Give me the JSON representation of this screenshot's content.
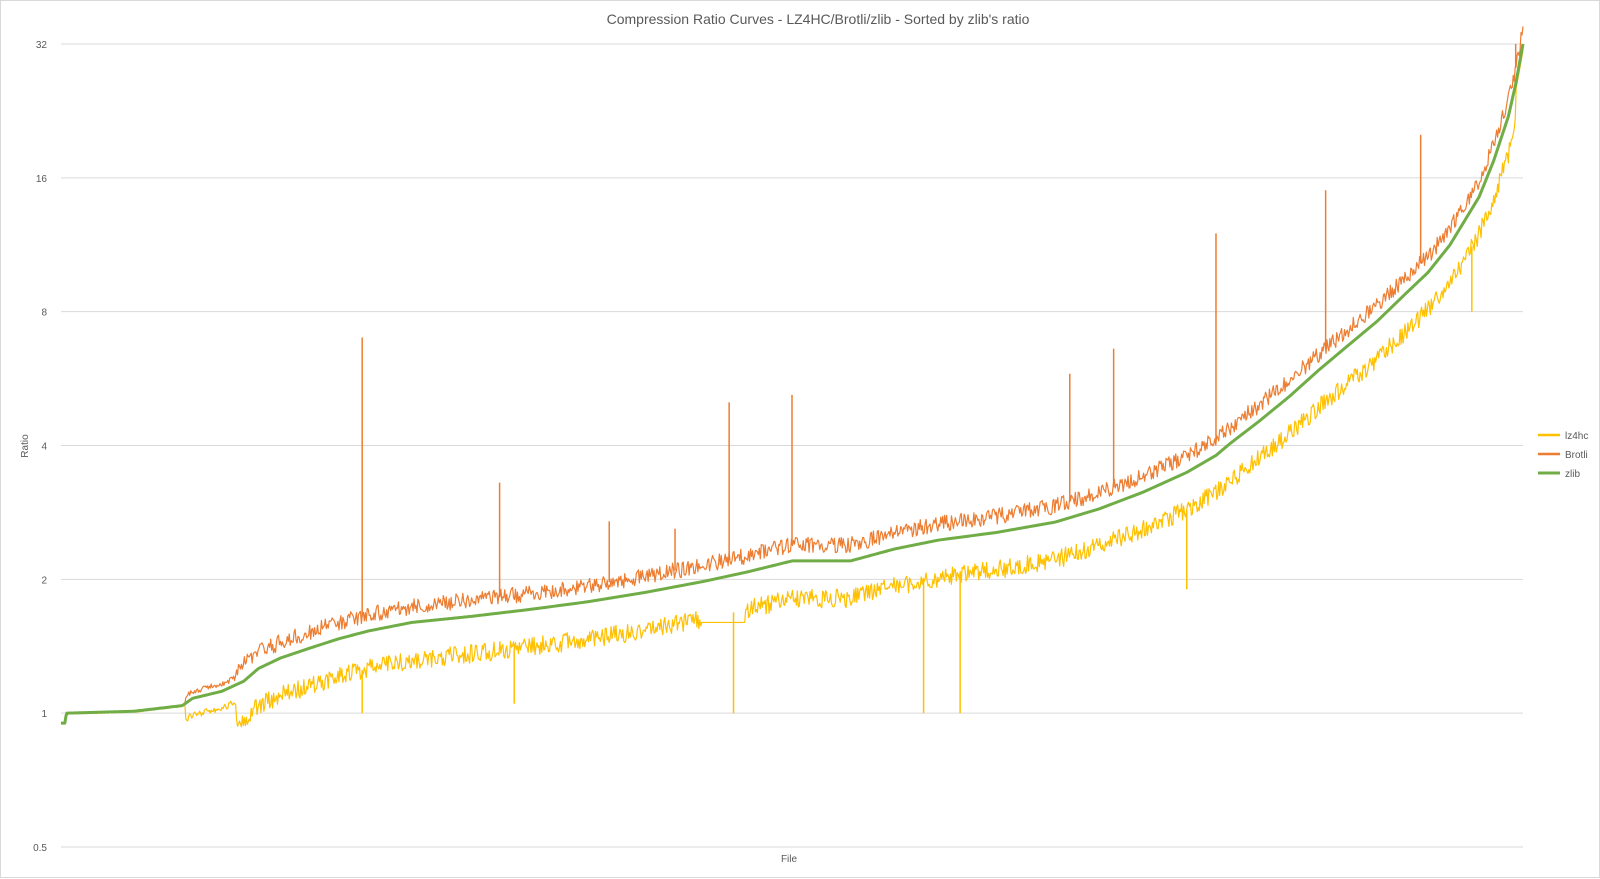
{
  "chart_data": {
    "type": "line",
    "title": "Compression Ratio Curves - LZ4HC/Brotli/zlib - Sorted by zlib's ratio",
    "xlabel": "File",
    "ylabel": "Ratio",
    "yscale": "log2",
    "ylim": [
      0.5,
      32
    ],
    "yticks": [
      "0.5",
      "1",
      "2",
      "4",
      "8",
      "16",
      "32"
    ],
    "grid": "horizontal",
    "legend_position": "right",
    "n_points": 1500,
    "zlib_curve": [
      [
        0,
        0.95
      ],
      [
        0.003,
        0.95
      ],
      [
        0.0035,
        1.0
      ],
      [
        0.05,
        1.01
      ],
      [
        0.083,
        1.04
      ],
      [
        0.09,
        1.08
      ],
      [
        0.11,
        1.12
      ],
      [
        0.125,
        1.18
      ],
      [
        0.135,
        1.26
      ],
      [
        0.15,
        1.33
      ],
      [
        0.17,
        1.4
      ],
      [
        0.19,
        1.47
      ],
      [
        0.21,
        1.53
      ],
      [
        0.24,
        1.6
      ],
      [
        0.28,
        1.65
      ],
      [
        0.32,
        1.71
      ],
      [
        0.36,
        1.78
      ],
      [
        0.4,
        1.87
      ],
      [
        0.44,
        1.98
      ],
      [
        0.47,
        2.08
      ],
      [
        0.5,
        2.2
      ],
      [
        0.54,
        2.2
      ],
      [
        0.57,
        2.34
      ],
      [
        0.6,
        2.45
      ],
      [
        0.64,
        2.55
      ],
      [
        0.68,
        2.69
      ],
      [
        0.71,
        2.88
      ],
      [
        0.74,
        3.14
      ],
      [
        0.77,
        3.48
      ],
      [
        0.79,
        3.8
      ],
      [
        0.8,
        4.05
      ],
      [
        0.82,
        4.55
      ],
      [
        0.84,
        5.15
      ],
      [
        0.86,
        5.9
      ],
      [
        0.88,
        6.7
      ],
      [
        0.9,
        7.6
      ],
      [
        0.92,
        8.8
      ],
      [
        0.935,
        9.8
      ],
      [
        0.95,
        11.3
      ],
      [
        0.96,
        12.8
      ],
      [
        0.97,
        14.5
      ],
      [
        0.98,
        17.5
      ],
      [
        0.99,
        22.0
      ],
      [
        0.995,
        26.0
      ],
      [
        1.0,
        32.0
      ]
    ],
    "series": [
      {
        "name": "lz4hc",
        "color": "#ffc000",
        "stroke_width": 1.2,
        "spread": 0.07,
        "offset": -0.28
      },
      {
        "name": "Brotli",
        "color": "#ed7d31",
        "stroke_width": 1.2,
        "spread": 0.06,
        "offset": 0.12
      },
      {
        "name": "zlib",
        "color": "#70ad47",
        "stroke_width": 3,
        "spread": 0,
        "offset": 0
      }
    ],
    "spikes": {
      "Brotli": [
        [
          0.206,
          7.0
        ],
        [
          0.3,
          3.3
        ],
        [
          0.375,
          2.7
        ],
        [
          0.42,
          2.6
        ],
        [
          0.457,
          5.0
        ],
        [
          0.5,
          5.2
        ],
        [
          0.69,
          5.8
        ],
        [
          0.72,
          6.6
        ],
        [
          0.79,
          12.0
        ],
        [
          0.865,
          15.0
        ],
        [
          0.93,
          20.0
        ],
        [
          0.995,
          32.0
        ]
      ],
      "lz4hc": [
        [
          0.206,
          1.0
        ],
        [
          0.31,
          1.05
        ],
        [
          0.46,
          1.0
        ],
        [
          0.59,
          1.0
        ],
        [
          0.615,
          1.0
        ],
        [
          0.77,
          1.9
        ],
        [
          0.965,
          8.0
        ]
      ]
    }
  }
}
